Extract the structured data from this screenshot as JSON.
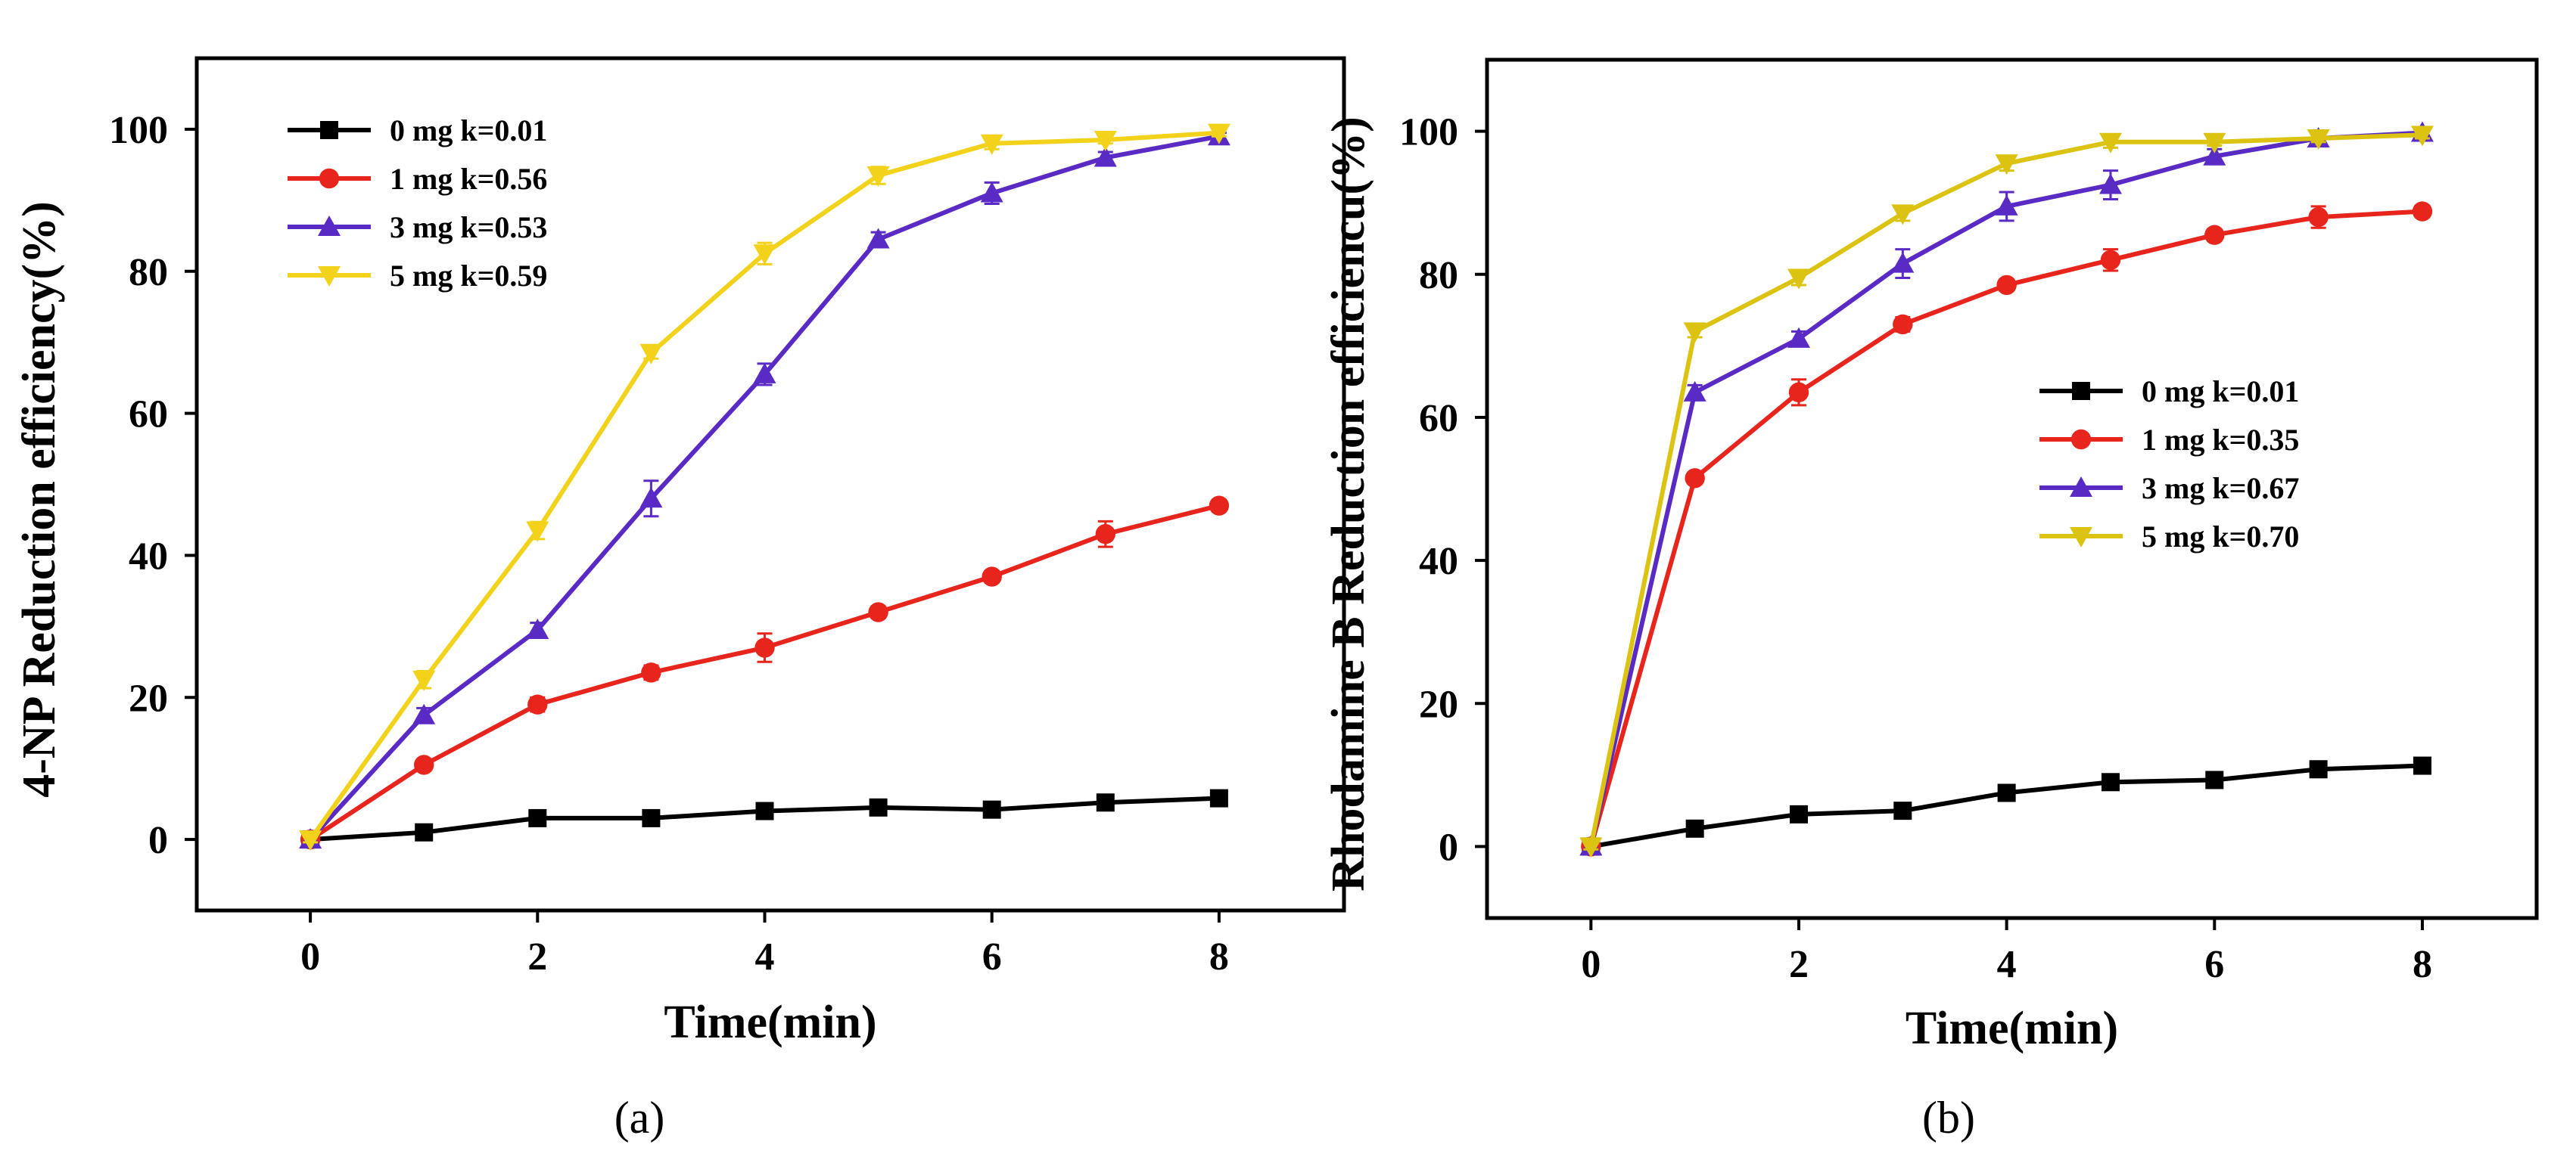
{
  "chart_data": [
    {
      "type": "line",
      "panel_label": "(a)",
      "xlabel": "Time(min)",
      "ylabel": "4-NP Reduction efficiency(%)",
      "xlim": [
        -1.0,
        9.1
      ],
      "ylim": [
        -10,
        110
      ],
      "xticks": [
        0,
        2,
        4,
        6,
        8
      ],
      "yticks": [
        0,
        20,
        40,
        60,
        80,
        100
      ],
      "legend_position": "top-left",
      "x": [
        0,
        1,
        2,
        3,
        4,
        5,
        6,
        7,
        8
      ],
      "series": [
        {
          "name": "0 mg k=0.01",
          "color": "#000000",
          "marker": "square",
          "values": [
            0,
            1.0,
            3.0,
            3.0,
            4.0,
            4.5,
            4.2,
            5.2,
            5.8
          ],
          "errors": [
            0.3,
            0.4,
            0.5,
            0.5,
            0.5,
            0.5,
            0.5,
            0.5,
            0.5
          ]
        },
        {
          "name": "1 mg k=0.56",
          "color": "#e8251c",
          "marker": "circle",
          "values": [
            0,
            10.5,
            19.0,
            23.5,
            27.0,
            32.0,
            37.0,
            43.0,
            47.0
          ],
          "errors": [
            0.4,
            0.8,
            1.0,
            1.0,
            2.0,
            0.8,
            0.8,
            1.8,
            0.8
          ]
        },
        {
          "name": "3 mg k=0.53",
          "color": "#5a2bc4",
          "marker": "triangle-up",
          "values": [
            0,
            17.5,
            29.5,
            48.0,
            65.5,
            84.5,
            91.0,
            96.0,
            99.0
          ],
          "errors": [
            0.4,
            1.0,
            1.0,
            2.5,
            1.5,
            1.0,
            1.5,
            0.8,
            0.5
          ]
        },
        {
          "name": "5 mg k=0.59",
          "color": "#f2d21b",
          "marker": "triangle-down",
          "values": [
            0,
            22.5,
            43.5,
            68.5,
            82.5,
            93.5,
            98.0,
            98.5,
            99.5
          ],
          "errors": [
            0.4,
            1.2,
            1.2,
            0.8,
            1.5,
            1.2,
            0.8,
            0.5,
            0.5
          ]
        }
      ]
    },
    {
      "type": "line",
      "panel_label": "(b)",
      "xlabel": "Time(min)",
      "ylabel": "Rhodamine B Reduction efficiencu(%)",
      "xlim": [
        -1.0,
        9.1
      ],
      "ylim": [
        -10,
        110
      ],
      "xticks": [
        0,
        2,
        4,
        6,
        8
      ],
      "yticks": [
        0,
        20,
        40,
        60,
        80,
        100
      ],
      "legend_position": "center-right",
      "x": [
        0,
        1,
        2,
        3,
        4,
        5,
        6,
        7,
        8
      ],
      "series": [
        {
          "name": "0 mg k=0.01",
          "color": "#000000",
          "marker": "square",
          "values": [
            0,
            2.5,
            4.5,
            5.0,
            7.5,
            9.0,
            9.3,
            10.8,
            11.3
          ],
          "errors": [
            0.3,
            0.4,
            0.5,
            0.5,
            0.5,
            0.5,
            0.5,
            0.5,
            0.5
          ]
        },
        {
          "name": "1 mg k=0.35",
          "color": "#e8251c",
          "marker": "circle",
          "values": [
            0,
            51.5,
            63.5,
            73.0,
            78.5,
            82.0,
            85.5,
            88.0,
            88.8
          ],
          "errors": [
            0.4,
            0.8,
            1.8,
            1.0,
            0.8,
            1.5,
            0.8,
            1.5,
            0.8
          ]
        },
        {
          "name": "3 mg k=0.67",
          "color": "#5a2bc4",
          "marker": "triangle-up",
          "values": [
            0,
            63.5,
            71.0,
            81.5,
            89.5,
            92.5,
            96.5,
            99.0,
            99.8
          ],
          "errors": [
            0.4,
            1.0,
            1.0,
            2.0,
            2.0,
            2.0,
            1.0,
            1.0,
            0.5
          ]
        },
        {
          "name": "5 mg k=0.70",
          "color": "#dcc312",
          "marker": "triangle-down",
          "values": [
            0,
            72.0,
            79.5,
            88.5,
            95.5,
            98.5,
            98.5,
            99.0,
            99.5
          ],
          "errors": [
            0.4,
            0.8,
            1.0,
            1.0,
            1.0,
            0.8,
            0.5,
            0.5,
            0.5
          ]
        }
      ]
    }
  ]
}
